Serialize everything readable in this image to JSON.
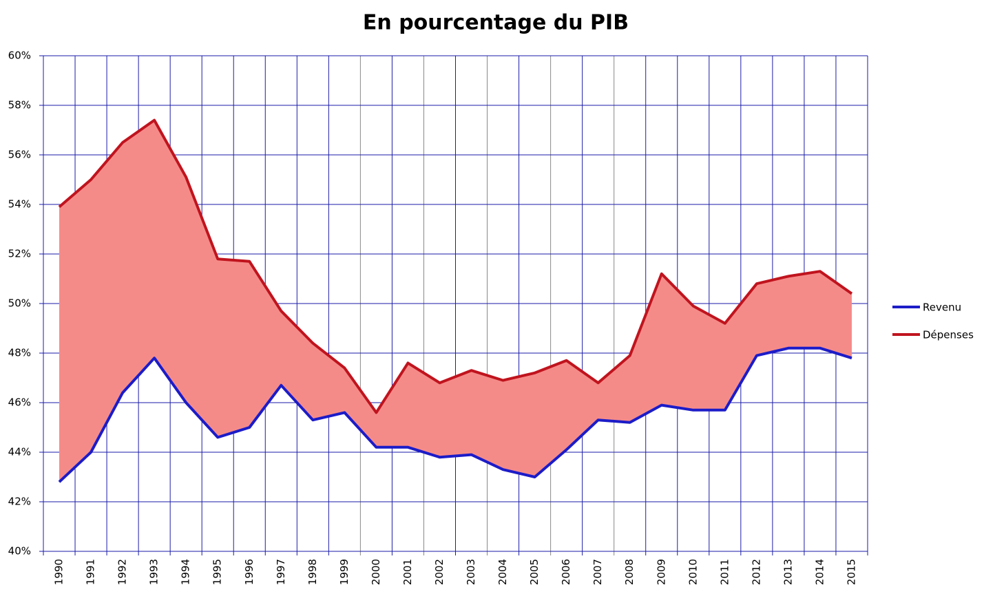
{
  "chart_data": {
    "type": "line",
    "title": "En pourcentage du PIB",
    "categories": [
      "1990",
      "1991",
      "1992",
      "1993",
      "1994",
      "1995",
      "1996",
      "1997",
      "1998",
      "1999",
      "2000",
      "2001",
      "2002",
      "2003",
      "2004",
      "2005",
      "2006",
      "2007",
      "2008",
      "2009",
      "2010",
      "2011",
      "2012",
      "2013",
      "2014",
      "2015"
    ],
    "series": [
      {
        "name": "Revenu",
        "color": "#1c1cc8",
        "values": [
          42.8,
          44.0,
          46.4,
          47.8,
          46.0,
          44.6,
          45.0,
          46.7,
          45.3,
          45.6,
          44.2,
          44.2,
          43.8,
          43.9,
          43.3,
          43.0,
          44.1,
          45.3,
          45.2,
          45.9,
          45.7,
          45.7,
          47.9,
          48.2,
          48.2,
          47.8
        ]
      },
      {
        "name": "Dépenses",
        "color": "#c0141e",
        "values": [
          53.9,
          55.0,
          56.5,
          57.4,
          55.1,
          51.8,
          51.7,
          49.7,
          48.4,
          47.4,
          45.6,
          47.6,
          46.8,
          47.3,
          46.9,
          47.2,
          47.7,
          46.8,
          47.9,
          51.2,
          49.9,
          49.2,
          50.8,
          51.1,
          51.3,
          50.4
        ]
      }
    ],
    "fill_between": true,
    "fill_color": "#f58b89",
    "ylim": [
      40,
      60
    ],
    "yticks": [
      {
        "value": 40,
        "label": "40%"
      },
      {
        "value": 42,
        "label": "42%"
      },
      {
        "value": 44,
        "label": "44%"
      },
      {
        "value": 46,
        "label": "46%"
      },
      {
        "value": 48,
        "label": "48%"
      },
      {
        "value": 50,
        "label": "50%"
      },
      {
        "value": 52,
        "label": "52%"
      },
      {
        "value": 54,
        "label": "54%"
      },
      {
        "value": 56,
        "label": "56%"
      },
      {
        "value": 58,
        "label": "58%"
      },
      {
        "value": 60,
        "label": "60%"
      }
    ],
    "grid": true,
    "grid_color": "#1a1aa8",
    "legend": "right"
  }
}
